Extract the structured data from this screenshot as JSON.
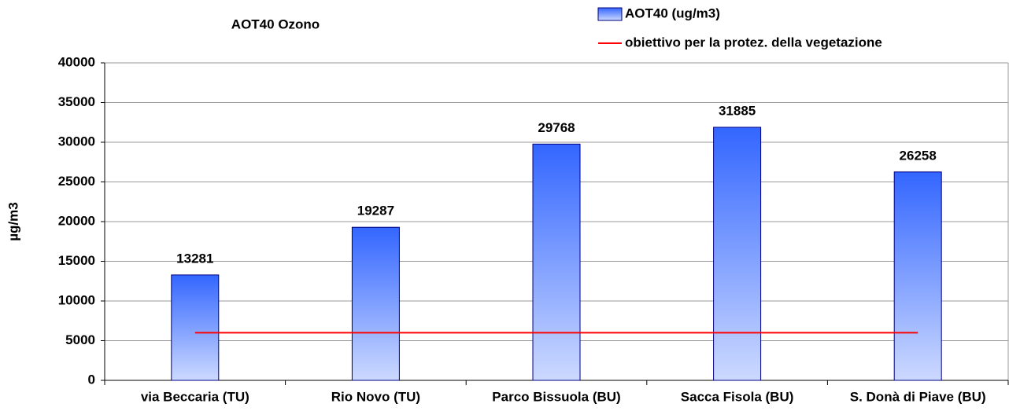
{
  "chart_data": {
    "type": "bar",
    "title": "AOT40 Ozono",
    "y_label": "µg/m3",
    "categories": [
      "via Beccaria (TU)",
      "Rio Novo (TU)",
      "Parco Bissuola (BU)",
      "Sacca Fisola (BU)",
      "S. Donà di Piave (BU)"
    ],
    "series": [
      {
        "name": "AOT40 (ug/m3)",
        "type": "bar",
        "color": "#3366ff",
        "values": [
          13281,
          19287,
          29768,
          31885,
          26258
        ]
      },
      {
        "name": "obiettivo per la protez. della vegetazione",
        "type": "line",
        "color": "#ff0000",
        "values": [
          6000,
          6000,
          6000,
          6000,
          6000
        ]
      }
    ],
    "ylim": [
      0,
      40000
    ],
    "yticks": [
      0,
      5000,
      10000,
      15000,
      20000,
      25000,
      30000,
      35000,
      40000
    ],
    "grid": true,
    "legend": "top-right"
  }
}
